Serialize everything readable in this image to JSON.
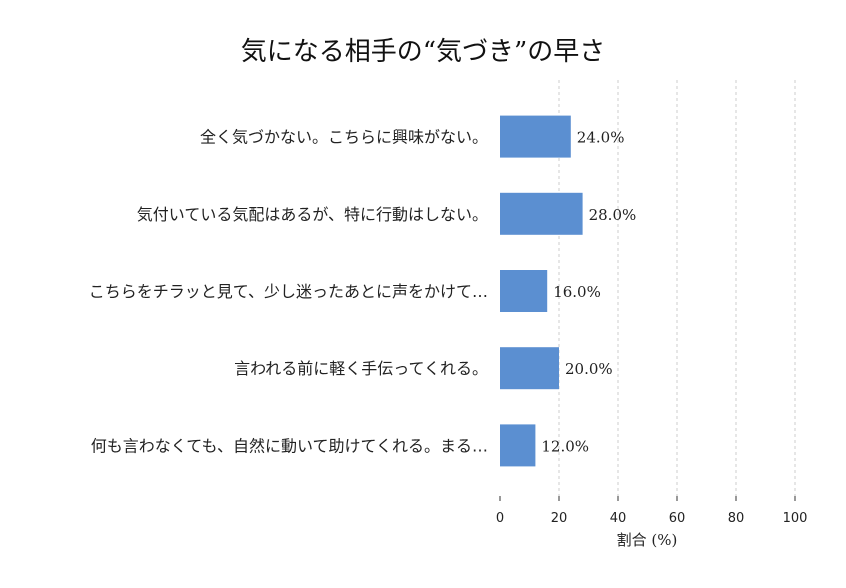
{
  "chart_data": {
    "type": "bar",
    "orientation": "horizontal",
    "title": "気になる相手の“気づき”の早さ",
    "categories": [
      "全く気づかない。こちらに興味がない。",
      "気付いている気配はあるが、特に行動はしない。",
      "こちらをチラッと見て、少し迷ったあとに声をかけて…",
      "言われる前に軽く手伝ってくれる。",
      "何も言わなくても、自然に動いて助けてくれる。まる…"
    ],
    "values": [
      24.0,
      28.0,
      16.0,
      20.0,
      12.0
    ],
    "value_labels": [
      "24.0%",
      "28.0%",
      "16.0%",
      "20.0%",
      "12.0%"
    ],
    "xlabel": "割合 (%)",
    "ylabel": "",
    "xlim": [
      0,
      100
    ],
    "xticks": [
      0,
      20,
      40,
      60,
      80,
      100
    ],
    "xtick_labels": [
      "0",
      "20",
      "40",
      "60",
      "80",
      "100"
    ],
    "grid": "vertical-dashed",
    "legend": "none",
    "bar_color": "#5b8fd1"
  }
}
